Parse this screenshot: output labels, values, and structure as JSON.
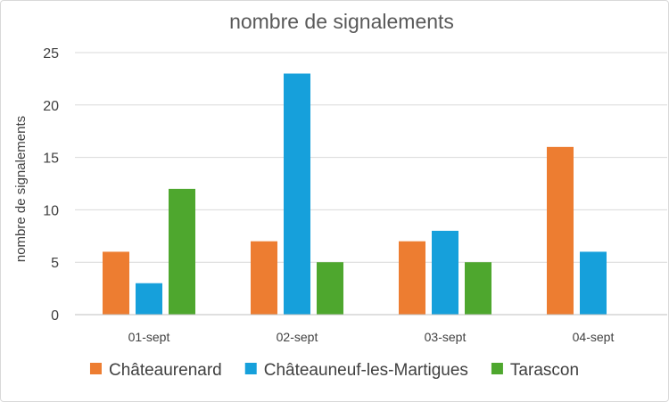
{
  "chart_data": {
    "type": "bar",
    "title": "nombre de signalements",
    "xlabel": "",
    "ylabel": "nombre de signalements",
    "categories": [
      "01-sept",
      "02-sept",
      "03-sept",
      "04-sept"
    ],
    "series": [
      {
        "name": "Châteaurenard",
        "color": "#ED7D31",
        "values": [
          6,
          7,
          7,
          16
        ]
      },
      {
        "name": "Châteauneuf-les-Martigues",
        "color": "#16A0DB",
        "values": [
          3,
          23,
          8,
          6
        ]
      },
      {
        "name": "Tarascon",
        "color": "#4EA72E",
        "values": [
          12,
          5,
          5,
          null
        ]
      }
    ],
    "ylim": [
      0,
      25
    ],
    "yticks": [
      0,
      5,
      10,
      15,
      20,
      25
    ],
    "grid": true,
    "legend": "bottom"
  }
}
